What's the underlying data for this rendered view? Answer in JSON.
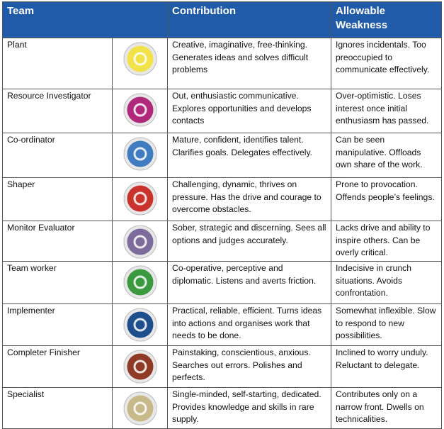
{
  "table": {
    "header": [
      "Team",
      "Contribution",
      "Allowable Weakness"
    ],
    "rows": [
      [
        "Plant",
        "Creative, imaginative, free-thinking. Generates ideas and solves difficult problems",
        "Ignores incidentals. Too preoccupied to communicate effectively."
      ],
      [
        "Resource Investigator",
        "Out, enthusiastic communicative. Explores opportunities and develops contacts",
        "Over-optimistic. Loses interest once initial enthusiasm has passed."
      ],
      [
        "Co-ordinator",
        "Mature, confident, identifies talent. Clarifies goals. Delegates effectively.",
        "Can be seen manipulative. Offloads own share of the work."
      ],
      [
        "Shaper",
        "Challenging, dynamic, thrives on pressure. Has the drive and courage to overcome obstacles.",
        "Prone to provocation. Offends people’s feelings."
      ],
      [
        "Monitor Evaluator",
        "Sober, strategic and discerning. Sees all options and judges accurately.",
        "Lacks drive and ability to inspire others. Can be overly critical."
      ],
      [
        "Team worker",
        "Co-operative, perceptive and diplomatic. Listens and averts friction.",
        "Indecisive in crunch situations. Avoids confrontation."
      ],
      [
        "Implementer",
        "Practical, reliable, efficient. Turns ideas into actions and organises work that needs to be done.",
        "Somewhat inflexible. Slow to respond to new possibilities."
      ],
      [
        "Completer Finisher",
        "Painstaking, conscientious, anxious. Searches out errors. Polishes and perfects.",
        "Inclined to worry unduly. Reluctant to delegate."
      ],
      [
        "Specialist",
        "Single-minded, self-starting, dedicated. Provides knowledge and skills in rare supply.",
        "Contributes only on a narrow front. Dwells on technicalities."
      ]
    ]
  }
}
